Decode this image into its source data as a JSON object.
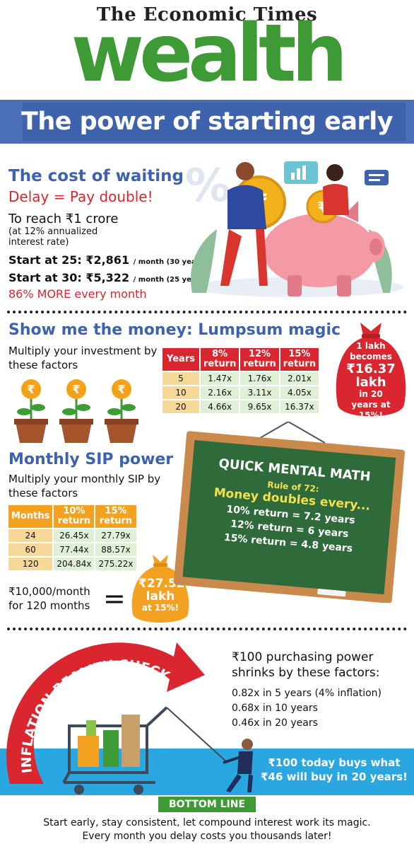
{
  "masthead": {
    "top": "The Economic Times",
    "brand": "wealth"
  },
  "title": "The power of starting early",
  "section1": {
    "heading": "The cost of waiting",
    "subheading": "Delay = Pay double!",
    "goal": "To reach ₹1 crore",
    "rate_note": "(at 12% annualized interest rate)",
    "start25_label": "Start at 25: ₹2,861",
    "start25_note": "/ month (30 years)",
    "start30_label": "Start at 30: ₹5,322",
    "start30_note": "/ month (25 years)",
    "conclusion": "86% MORE every month"
  },
  "section2": {
    "heading": "Show me the money: Lumpsum magic",
    "text": "Multiply your investment by these factors",
    "table": {
      "headers": [
        "Years",
        "8% return",
        "12% return",
        "15% return"
      ],
      "rows": [
        [
          "5",
          "1.47x",
          "1.76x",
          "2.01x"
        ],
        [
          "10",
          "2.16x",
          "3.11x",
          "4.05x"
        ],
        [
          "20",
          "4.66x",
          "9.65x",
          "16.37x"
        ]
      ]
    },
    "bag": {
      "line1": "1 lakh becomes",
      "amount": "₹16.37 lakh",
      "line3": "in 20 years at 15%!"
    }
  },
  "section3": {
    "heading": "Monthly SIP power",
    "text": "Multiply your monthly SIP by these factors",
    "table": {
      "headers": [
        "Months",
        "10% return",
        "15% return"
      ],
      "rows": [
        [
          "24",
          "26.45x",
          "27.79x"
        ],
        [
          "60",
          "77.44x",
          "88.57x"
        ],
        [
          "120",
          "204.84x",
          "275.22x"
        ]
      ]
    },
    "example_line1": "₹10,000/month",
    "example_line2": "for 120 months",
    "equals": "=",
    "bag": {
      "amount": "₹27.52 lakh",
      "note": "at 15%!"
    }
  },
  "board": {
    "title": "QUICK MENTAL MATH",
    "rule": "Rule of 72:",
    "headline": "Money doubles every...",
    "lines": [
      "10% return = 7.2 years",
      "12% return = 6 years",
      "15% return = 4.8 years"
    ]
  },
  "section4": {
    "arrow_label": "INFLATION REALITY CHECK",
    "heading": "₹100 purchasing power shrinks by these factors:",
    "items": [
      "0.82x in 5 years (4% inflation)",
      "0.68x in 10 years",
      "0.46x in 20 years"
    ],
    "water_text": "₹100 today buys what ₹46 will buy in 20 years!"
  },
  "bottom_line": {
    "label": "BOTTOM LINE",
    "text_line1": "Start early, stay consistent, let compound interest work its magic.",
    "text_line2": "Every month you delay costs you thousands later!"
  },
  "colors": {
    "brand_green": "#3e9a35",
    "banner_blue": "#3f62ad",
    "accent_red": "#d8262d",
    "sip_orange": "#f2a121",
    "board_green": "#2f6b3a",
    "water_blue": "#2aa7e0"
  }
}
